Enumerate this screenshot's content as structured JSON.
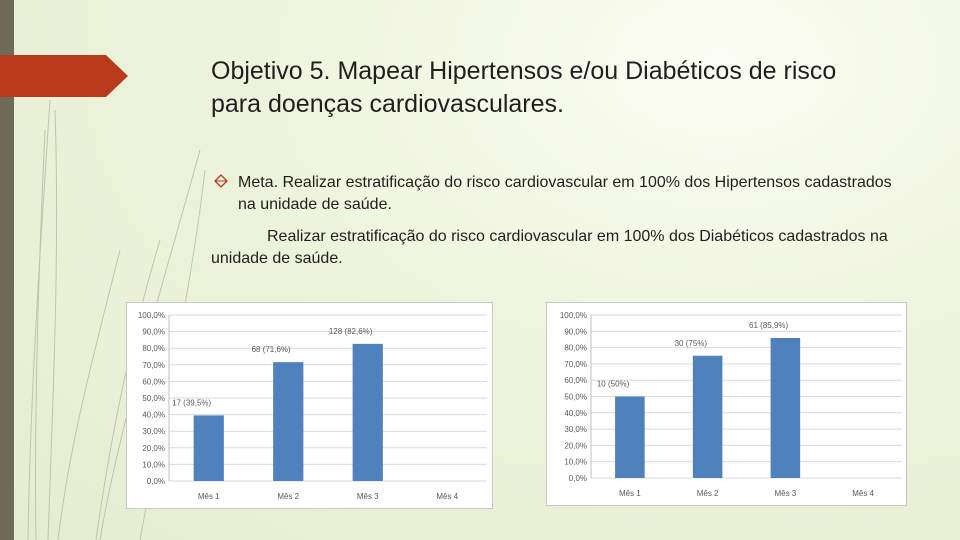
{
  "slide": {
    "title": "Objetivo 5. Mapear Hipertensos e/ou Diabéticos de risco para doenças cardiovasculares.",
    "bullet_icon": "diamond-outline-icon",
    "bullet_text": "Meta. Realizar estratificação do risco cardiovascular em 100% dos Hipertensos cadastrados na unidade de saúde.",
    "paragraph": "Realizar estratificação do risco cardiovascular em 100% dos Diabéticos cadastrados na unidade de saúde.",
    "colors": {
      "accent": "#b93a1d",
      "bar": "#4f81bd",
      "sidebar": "#6f6a57"
    }
  },
  "chart_data": [
    {
      "type": "bar",
      "categories": [
        "Mês 1",
        "Mês 2",
        "Mês 3",
        "Mês 4"
      ],
      "values": [
        39.5,
        71.6,
        82.6,
        null
      ],
      "data_labels": [
        "17 (39,5%)",
        "68 (71,6%)",
        "128 (82,6%)",
        ""
      ],
      "y_ticks": [
        "0,0%",
        "10,0%",
        "20,0%",
        "30,0%",
        "40,0%",
        "50,0%",
        "60,0%",
        "70,0%",
        "80,0%",
        "90,0%",
        "100,0%"
      ],
      "ylim": [
        0,
        100
      ],
      "grid": true
    },
    {
      "type": "bar",
      "categories": [
        "Mês 1",
        "Mês 2",
        "Mês 3",
        "Mês 4"
      ],
      "values": [
        50,
        75,
        85.9,
        null
      ],
      "data_labels": [
        "10 (50%)",
        "30 (75%)",
        "61 (85,9%)",
        ""
      ],
      "y_ticks": [
        "0,0%",
        "10,0%",
        "20,0%",
        "30,0%",
        "40,0%",
        "50,0%",
        "60,0%",
        "70,0%",
        "80,0%",
        "90,0%",
        "100,0%"
      ],
      "ylim": [
        0,
        100
      ],
      "grid": true
    }
  ]
}
